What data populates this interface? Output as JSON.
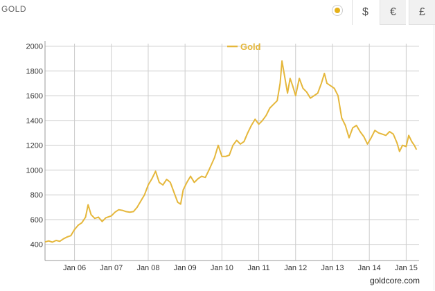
{
  "header": {
    "title": "GOLD",
    "tabs": [
      {
        "symbol": "$",
        "active": true
      },
      {
        "symbol": "€",
        "active": false
      },
      {
        "symbol": "£",
        "active": false
      }
    ]
  },
  "colors": {
    "line": "#e5b73b",
    "accent": "#e5b119",
    "grid": "#cccccc"
  },
  "credit": "goldcore.com",
  "chart_data": {
    "type": "line",
    "title": "",
    "xlabel": "",
    "ylabel": "",
    "legend": {
      "position": "top-center",
      "entries": [
        "Gold"
      ]
    },
    "grid": true,
    "ylim": [
      270,
      2020
    ],
    "xlim": [
      2005.2,
      2015.35
    ],
    "y_ticks": [
      400,
      600,
      800,
      1000,
      1200,
      1400,
      1600,
      1800,
      2000
    ],
    "x_ticks": [
      {
        "label": "Jan 06",
        "value": 2006.0
      },
      {
        "label": "Jan 07",
        "value": 2007.0
      },
      {
        "label": "Jan 08",
        "value": 2008.0
      },
      {
        "label": "Jan 09",
        "value": 2009.0
      },
      {
        "label": "Jan 10",
        "value": 2010.0
      },
      {
        "label": "Jan 11",
        "value": 2011.0
      },
      {
        "label": "Jan 12",
        "value": 2012.0
      },
      {
        "label": "Jan 13",
        "value": 2013.0
      },
      {
        "label": "Jan 14",
        "value": 2014.0
      },
      {
        "label": "Jan 15",
        "value": 2015.0
      }
    ],
    "series": [
      {
        "name": "Gold",
        "color": "#e5b73b",
        "points": [
          [
            2005.2,
            420
          ],
          [
            2005.3,
            428
          ],
          [
            2005.4,
            418
          ],
          [
            2005.5,
            432
          ],
          [
            2005.6,
            425
          ],
          [
            2005.7,
            445
          ],
          [
            2005.8,
            460
          ],
          [
            2005.9,
            470
          ],
          [
            2006.0,
            520
          ],
          [
            2006.1,
            555
          ],
          [
            2006.2,
            575
          ],
          [
            2006.3,
            620
          ],
          [
            2006.37,
            720
          ],
          [
            2006.45,
            640
          ],
          [
            2006.55,
            610
          ],
          [
            2006.65,
            620
          ],
          [
            2006.75,
            585
          ],
          [
            2006.85,
            615
          ],
          [
            2007.0,
            630
          ],
          [
            2007.1,
            660
          ],
          [
            2007.2,
            680
          ],
          [
            2007.3,
            675
          ],
          [
            2007.4,
            665
          ],
          [
            2007.5,
            660
          ],
          [
            2007.6,
            665
          ],
          [
            2007.7,
            700
          ],
          [
            2007.8,
            750
          ],
          [
            2007.9,
            800
          ],
          [
            2008.0,
            880
          ],
          [
            2008.1,
            930
          ],
          [
            2008.2,
            990
          ],
          [
            2008.3,
            900
          ],
          [
            2008.4,
            880
          ],
          [
            2008.5,
            925
          ],
          [
            2008.6,
            900
          ],
          [
            2008.7,
            820
          ],
          [
            2008.8,
            740
          ],
          [
            2008.88,
            725
          ],
          [
            2008.95,
            840
          ],
          [
            2009.05,
            900
          ],
          [
            2009.15,
            950
          ],
          [
            2009.25,
            900
          ],
          [
            2009.35,
            930
          ],
          [
            2009.45,
            950
          ],
          [
            2009.55,
            940
          ],
          [
            2009.65,
            1000
          ],
          [
            2009.8,
            1100
          ],
          [
            2009.9,
            1200
          ],
          [
            2010.0,
            1110
          ],
          [
            2010.1,
            1110
          ],
          [
            2010.2,
            1120
          ],
          [
            2010.3,
            1200
          ],
          [
            2010.4,
            1240
          ],
          [
            2010.5,
            1210
          ],
          [
            2010.6,
            1230
          ],
          [
            2010.7,
            1300
          ],
          [
            2010.8,
            1360
          ],
          [
            2010.9,
            1410
          ],
          [
            2011.0,
            1370
          ],
          [
            2011.1,
            1400
          ],
          [
            2011.2,
            1440
          ],
          [
            2011.3,
            1500
          ],
          [
            2011.4,
            1530
          ],
          [
            2011.5,
            1560
          ],
          [
            2011.58,
            1700
          ],
          [
            2011.63,
            1880
          ],
          [
            2011.7,
            1760
          ],
          [
            2011.78,
            1620
          ],
          [
            2011.85,
            1740
          ],
          [
            2011.92,
            1680
          ],
          [
            2012.0,
            1600
          ],
          [
            2012.1,
            1740
          ],
          [
            2012.2,
            1660
          ],
          [
            2012.3,
            1630
          ],
          [
            2012.4,
            1580
          ],
          [
            2012.5,
            1600
          ],
          [
            2012.6,
            1620
          ],
          [
            2012.7,
            1700
          ],
          [
            2012.78,
            1780
          ],
          [
            2012.85,
            1700
          ],
          [
            2012.95,
            1680
          ],
          [
            2013.05,
            1660
          ],
          [
            2013.15,
            1600
          ],
          [
            2013.25,
            1420
          ],
          [
            2013.35,
            1360
          ],
          [
            2013.45,
            1260
          ],
          [
            2013.55,
            1340
          ],
          [
            2013.65,
            1360
          ],
          [
            2013.75,
            1310
          ],
          [
            2013.85,
            1270
          ],
          [
            2013.95,
            1210
          ],
          [
            2014.05,
            1260
          ],
          [
            2014.15,
            1320
          ],
          [
            2014.25,
            1300
          ],
          [
            2014.35,
            1290
          ],
          [
            2014.45,
            1280
          ],
          [
            2014.55,
            1310
          ],
          [
            2014.65,
            1290
          ],
          [
            2014.75,
            1220
          ],
          [
            2014.82,
            1150
          ],
          [
            2014.9,
            1200
          ],
          [
            2015.0,
            1190
          ],
          [
            2015.07,
            1280
          ],
          [
            2015.15,
            1230
          ],
          [
            2015.22,
            1200
          ],
          [
            2015.28,
            1165
          ]
        ]
      }
    ]
  }
}
